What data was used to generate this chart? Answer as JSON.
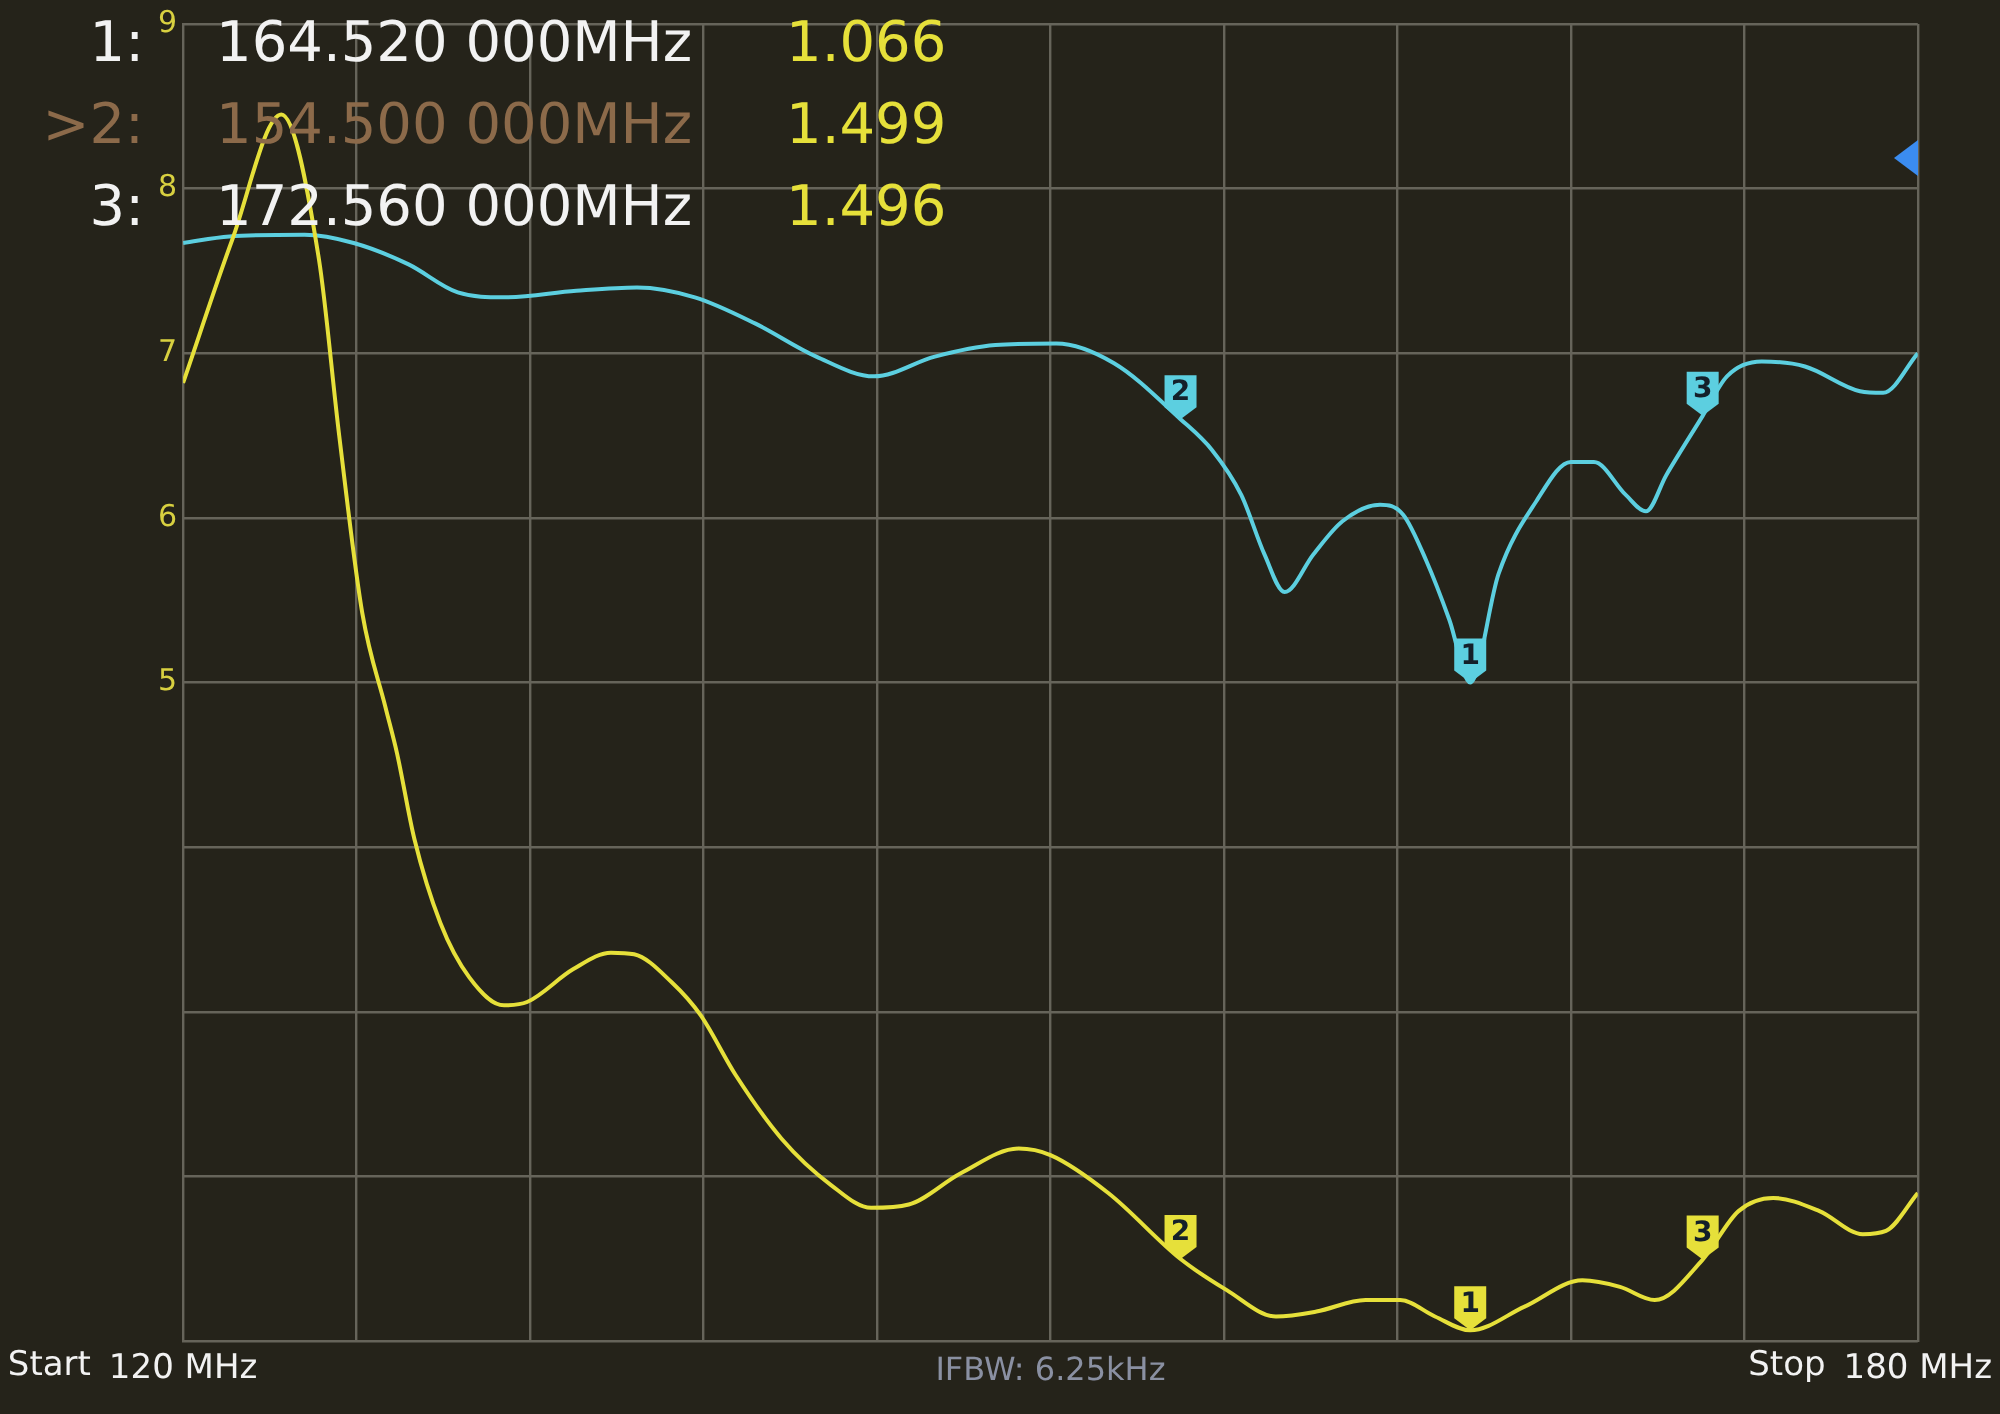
{
  "chart_data": {
    "type": "line",
    "series": [
      {
        "color": "#e6e03a",
        "x": [
          120,
          121.7,
          123.4,
          124.7,
          125.4,
          126.2,
          127.0,
          127.4,
          128.0,
          128.9,
          129.9,
          131.1,
          131.9,
          133.5,
          134.8,
          135.6,
          136.9,
          137.9,
          139.1,
          140.7,
          142.4,
          143.8,
          145.1,
          146.9,
          148.9,
          150.0,
          152.0,
          154.5,
          156.1,
          157.8,
          159.2,
          160.9,
          162.1,
          163.3,
          164.52,
          166.4,
          168.4,
          169.7,
          170.9,
          172.56,
          173.8,
          175.0,
          176.6,
          178.1,
          178.9,
          180
        ],
        "values": [
          6.82,
          7.69,
          8.45,
          7.57,
          6.5,
          5.42,
          4.85,
          4.57,
          4.05,
          3.54,
          3.21,
          3.04,
          3.06,
          3.26,
          3.36,
          3.35,
          3.18,
          2.98,
          2.62,
          2.23,
          1.95,
          1.81,
          1.83,
          2.02,
          2.17,
          2.13,
          1.9,
          1.499,
          1.31,
          1.15,
          1.18,
          1.25,
          1.25,
          1.15,
          1.066,
          1.21,
          1.37,
          1.33,
          1.25,
          1.496,
          1.79,
          1.87,
          1.79,
          1.65,
          1.67,
          1.9
        ]
      },
      {
        "color": "#5ccfe0",
        "x": [
          120,
          121.6,
          124.2,
          125.9,
          127.8,
          129.5,
          131.1,
          133.6,
          135.7,
          137.7,
          139.8,
          141.9,
          143.9,
          146.0,
          148.1,
          150.2,
          152.2,
          154.5,
          155.6,
          156.6,
          157.4,
          158.1,
          159.1,
          160.1,
          161.4,
          162.2,
          163.0,
          163.8,
          164.52,
          165.5,
          166.8,
          168.0,
          168.8,
          169.9,
          170.6,
          171.3,
          172.56,
          173.4,
          174.6,
          176.1,
          178.0,
          178.8,
          180
        ],
        "values": [
          7.67,
          7.71,
          7.72,
          7.67,
          7.54,
          7.37,
          7.34,
          7.38,
          7.4,
          7.34,
          7.18,
          6.98,
          6.86,
          6.98,
          7.05,
          7.06,
          6.94,
          6.6,
          6.41,
          6.14,
          5.78,
          5.55,
          5.78,
          5.98,
          6.08,
          6.02,
          5.74,
          5.38,
          5.0,
          5.66,
          6.1,
          6.34,
          6.34,
          6.14,
          6.04,
          6.26,
          6.62,
          6.86,
          6.95,
          6.92,
          6.77,
          6.76,
          7.0
        ]
      }
    ],
    "xlim": [
      120,
      180
    ],
    "xticks": [
      {
        "value": 120,
        "label": "120 MHz"
      },
      {
        "value": 126,
        "label": null
      },
      {
        "value": 132,
        "label": null
      },
      {
        "value": 138,
        "label": null
      },
      {
        "value": 144,
        "label": null
      },
      {
        "value": 150,
        "label": null
      },
      {
        "value": 156,
        "label": null
      },
      {
        "value": 162,
        "label": null
      },
      {
        "value": 168,
        "label": null
      },
      {
        "value": 174,
        "label": null
      },
      {
        "value": 180,
        "label": "180 MHz"
      }
    ],
    "ylim": [
      1,
      9
    ],
    "yticks": [
      {
        "value": 1,
        "label": null
      },
      {
        "value": 2,
        "label": null
      },
      {
        "value": 3,
        "label": null
      },
      {
        "value": 4,
        "label": null
      },
      5,
      6,
      7,
      8,
      9
    ],
    "grid": true,
    "annotations": [
      "1:",
      "164.520 000MHz",
      "1.066",
      ">2:",
      "154.500 000MHz",
      "1.499",
      "3:",
      "172.560 000MHz",
      "1.496",
      {
        "text": "1",
        "x": 164.52,
        "y": 1.066
      },
      {
        "text": "2",
        "x": 154.5,
        "y": 1.499
      },
      {
        "text": "3",
        "x": 172.56,
        "y": 1.496
      },
      {
        "text": "1",
        "x": 164.52,
        "y": 5.0
      },
      {
        "text": "2",
        "x": 154.5,
        "y": 6.6
      },
      {
        "text": "3",
        "x": 172.56,
        "y": 6.62
      },
      "Start",
      "IFBW: 6.25kHz",
      "Stop"
    ]
  }
}
